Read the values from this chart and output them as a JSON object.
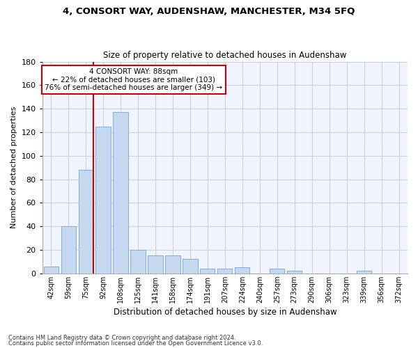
{
  "title": "4, CONSORT WAY, AUDENSHAW, MANCHESTER, M34 5FQ",
  "subtitle": "Size of property relative to detached houses in Audenshaw",
  "xlabel": "Distribution of detached houses by size in Audenshaw",
  "ylabel": "Number of detached properties",
  "bar_values": [
    6,
    40,
    88,
    125,
    137,
    20,
    15,
    15,
    12,
    4,
    4,
    5,
    0,
    4,
    2,
    0,
    0,
    0,
    2,
    0,
    0
  ],
  "bar_labels": [
    "42sqm",
    "59sqm",
    "75sqm",
    "92sqm",
    "108sqm",
    "125sqm",
    "141sqm",
    "158sqm",
    "174sqm",
    "191sqm",
    "207sqm",
    "224sqm",
    "240sqm",
    "257sqm",
    "273sqm",
    "290sqm",
    "306sqm",
    "323sqm",
    "339sqm",
    "356sqm",
    "372sqm"
  ],
  "bar_color": "#c5d8f0",
  "bar_edge_color": "#7aaedb",
  "grid_color": "#d0d0d0",
  "background_color": "#ffffff",
  "plot_bg_color": "#f0f4ff",
  "vline_color": "#cc0000",
  "annotation_text": "4 CONSORT WAY: 88sqm\n← 22% of detached houses are smaller (103)\n76% of semi-detached houses are larger (349) →",
  "annotation_box_color": "#ffffff",
  "annotation_box_edge": "#cc0000",
  "ylim": [
    0,
    180
  ],
  "yticks": [
    0,
    20,
    40,
    60,
    80,
    100,
    120,
    140,
    160,
    180
  ],
  "footer1": "Contains HM Land Registry data © Crown copyright and database right 2024.",
  "footer2": "Contains public sector information licensed under the Open Government Licence v3.0."
}
